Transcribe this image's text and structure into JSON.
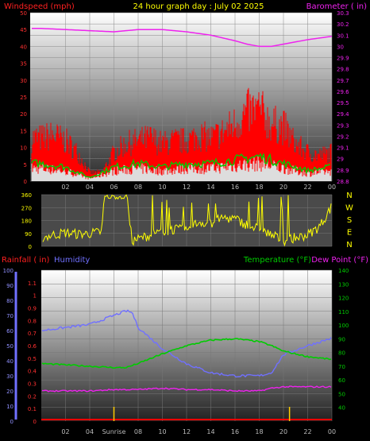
{
  "header": {
    "title": "24 hour graph day : July 02 2025",
    "wind_label": "Windspeed (mph)",
    "baro_label": "Barometer ( in)"
  },
  "lower_header": {
    "rain_label": "Rainfall ( in)",
    "humidity_label": "Humidity",
    "temp_label": "Temperature (°F)",
    "dew_label": "Dew Point (°F)"
  },
  "colors": {
    "wind": "#ff0000",
    "gust_green": "#00cc00",
    "calm_white": "#dddddd",
    "barometer": "#ee22ee",
    "direction": "#ffff00",
    "humidity": "#7070ff",
    "temperature": "#00cc00",
    "dew_point": "#ee22ee",
    "rainfall": "#ff0000",
    "axis_text": "#bbbbbb"
  },
  "chart_data": [
    {
      "type": "line",
      "name": "wind-barometer",
      "x_ticks": [
        "02",
        "04",
        "06",
        "08",
        "10",
        "12",
        "14",
        "16",
        "18",
        "20",
        "22",
        "00"
      ],
      "y_left": {
        "label": "Windspeed (mph)",
        "range": [
          0,
          50
        ],
        "ticks": [
          "0",
          "5",
          "10",
          "15",
          "20",
          "25",
          "30",
          "35",
          "40",
          "45",
          "50"
        ]
      },
      "y_right": {
        "label": "Barometer ( in)",
        "range": [
          28.8,
          30.3
        ],
        "ticks": [
          "28.8",
          "28.9",
          "29",
          "29.1",
          "29.2",
          "29.3",
          "29.4",
          "29.5",
          "29.6",
          "29.7",
          "29.8",
          "29.9",
          "30",
          "30.1",
          "30.2",
          "30.3"
        ]
      },
      "series": [
        {
          "name": "Barometer",
          "x": [
            0,
            2,
            4,
            6,
            8,
            10,
            12,
            14,
            16,
            17,
            18,
            19,
            20,
            22,
            24
          ],
          "values": [
            30.16,
            30.15,
            30.14,
            30.13,
            30.15,
            30.15,
            30.13,
            30.1,
            30.05,
            30.02,
            30.0,
            30.0,
            30.02,
            30.06,
            30.09
          ]
        },
        {
          "name": "Windspeed",
          "x": [
            0,
            1,
            2,
            3,
            4,
            5,
            6,
            7,
            8,
            9,
            10,
            11,
            12,
            13,
            14,
            15,
            16,
            17,
            18,
            19,
            20,
            21,
            22,
            23,
            24
          ],
          "values": [
            9,
            10,
            8,
            6,
            2,
            2,
            6,
            8,
            8,
            9,
            8,
            9,
            8,
            10,
            9,
            10,
            12,
            14,
            15,
            12,
            13,
            8,
            6,
            5,
            6
          ]
        },
        {
          "name": "Gust",
          "x": [
            0,
            1,
            2,
            3,
            4,
            5,
            6,
            7,
            8,
            9,
            10,
            11,
            12,
            13,
            14,
            15,
            16,
            17,
            18,
            19,
            20,
            21,
            22,
            23,
            24
          ],
          "values": [
            15,
            16,
            14,
            10,
            3,
            3,
            10,
            13,
            14,
            15,
            13,
            14,
            14,
            16,
            15,
            17,
            20,
            24,
            25,
            20,
            19,
            13,
            10,
            9,
            10
          ]
        },
        {
          "name": "Average",
          "x": [
            0,
            2,
            4,
            6,
            8,
            10,
            12,
            14,
            16,
            18,
            20,
            22,
            24
          ],
          "values": [
            5,
            4,
            1,
            4,
            5,
            4,
            5,
            5,
            6,
            7,
            5,
            3,
            4
          ]
        }
      ]
    },
    {
      "type": "line",
      "name": "wind-direction",
      "x_ticks": [
        "02",
        "04",
        "06",
        "08",
        "10",
        "12",
        "14",
        "16",
        "18",
        "20",
        "22",
        "00"
      ],
      "y_left": {
        "range": [
          0,
          360
        ],
        "ticks": [
          "0",
          "90",
          "180",
          "270",
          "360"
        ]
      },
      "y_right_ticks": [
        "N",
        "W",
        "S",
        "E",
        "N"
      ],
      "series": [
        {
          "name": "Wind direction",
          "x": [
            0,
            1,
            2,
            3,
            4,
            5,
            5.2,
            6,
            7,
            7.5,
            8,
            9,
            10,
            11,
            12,
            13,
            14,
            15,
            16,
            17,
            18,
            19,
            20,
            21,
            22,
            23,
            24
          ],
          "values": [
            60,
            80,
            95,
            85,
            90,
            100,
            340,
            345,
            350,
            40,
            50,
            80,
            100,
            120,
            110,
            170,
            160,
            200,
            190,
            150,
            120,
            80,
            40,
            60,
            80,
            140,
            280
          ]
        }
      ]
    },
    {
      "type": "line",
      "name": "temperature-humidity-rain",
      "x_ticks": [
        "02",
        "04",
        "Sunrise",
        "08",
        "10",
        "12",
        "14",
        "16",
        "18",
        "20",
        "22",
        "00"
      ],
      "y_rain": {
        "label": "Rainfall ( in)",
        "range": [
          0,
          1.2
        ],
        "ticks": [
          "0",
          "0.1",
          "0.2",
          "0.3",
          "0.4",
          "0.5",
          "0.6",
          "0.7",
          "0.8",
          "0.9",
          "1",
          "1.1"
        ]
      },
      "y_humidity": {
        "label": "Humidity",
        "range": [
          0,
          100
        ],
        "ticks": [
          "0",
          "10",
          "20",
          "30",
          "40",
          "50",
          "60",
          "70",
          "80",
          "90",
          "100"
        ]
      },
      "y_temp": {
        "label": "Temperature (°F)",
        "range": [
          30,
          140
        ],
        "ticks": [
          "40",
          "50",
          "60",
          "70",
          "80",
          "90",
          "100",
          "110",
          "120",
          "130",
          "140"
        ]
      },
      "series": [
        {
          "name": "Humidity",
          "x": [
            0,
            2,
            4,
            6,
            7,
            7.5,
            8,
            10,
            12,
            14,
            16,
            18,
            19,
            20,
            22,
            24
          ],
          "values": [
            60,
            62,
            64,
            70,
            73,
            72,
            62,
            48,
            38,
            32,
            30,
            30,
            32,
            44,
            50,
            55
          ]
        },
        {
          "name": "Temperature",
          "x": [
            0,
            2,
            4,
            6,
            7,
            8,
            10,
            12,
            14,
            16,
            18,
            19,
            20,
            22,
            24
          ],
          "values": [
            72,
            71,
            70,
            69,
            69,
            72,
            79,
            85,
            89,
            90,
            88,
            85,
            81,
            77,
            75
          ]
        },
        {
          "name": "Dew Point",
          "x": [
            0,
            2,
            4,
            6,
            8,
            10,
            12,
            14,
            16,
            18,
            19,
            20,
            22,
            24
          ],
          "values": [
            52,
            52,
            52,
            53,
            53,
            54,
            53,
            53,
            52,
            52,
            54,
            55,
            55,
            55
          ]
        },
        {
          "name": "Rainfall",
          "x": [
            0,
            24
          ],
          "values": [
            0,
            0
          ]
        }
      ],
      "markers": [
        {
          "x": 6,
          "label": "Sunrise"
        },
        {
          "x": 20.5,
          "label": ""
        }
      ]
    }
  ]
}
